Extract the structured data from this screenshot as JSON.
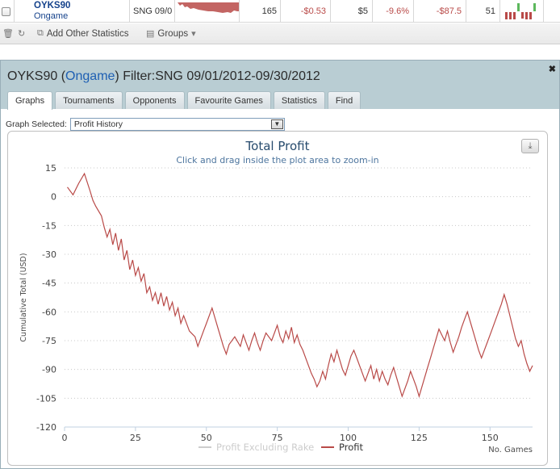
{
  "top_row": {
    "player_name": "OYKS90",
    "player_site": "Ongame",
    "game_type": "SNG 09/0",
    "games": "165",
    "profit": "-$0.53",
    "buyin": "$5",
    "roi": "-9.6%",
    "total": "-$87.5",
    "count": "51"
  },
  "toolbar": {
    "add_stats": "Add Other Statistics",
    "groups": "Groups"
  },
  "panel": {
    "title_player": "OYKS90",
    "title_site": "Ongame",
    "title_filter": "Filter:SNG 09/01/2012-09/30/2012",
    "close_glyph": "✖",
    "tabs": [
      "Graphs",
      "Tournaments",
      "Opponents",
      "Favourite Games",
      "Statistics",
      "Find"
    ],
    "graph_selected_label": "Graph Selected:",
    "graph_selected_value": "Profit History"
  },
  "chart_data": {
    "type": "line",
    "title": "Total Profit",
    "subtitle": "Click and drag inside the plot area to zoom-in",
    "xlabel": "No. Games",
    "ylabel": "Cumulative Total (USD)",
    "xlim": [
      0,
      165
    ],
    "ylim": [
      -120,
      15
    ],
    "x_ticks": [
      0,
      25,
      50,
      75,
      100,
      125,
      150
    ],
    "y_ticks": [
      15,
      0,
      -15,
      -30,
      -45,
      -60,
      -75,
      -90,
      -105,
      -120
    ],
    "legend": [
      "Profit Excluding Rake",
      "Profit"
    ],
    "legend_position": "bottom-center",
    "colors": {
      "profit": "#b94a48",
      "excl_rake": "#cccccc"
    },
    "series": [
      {
        "name": "Profit",
        "x": [
          1,
          3,
          5,
          7,
          9,
          10,
          11,
          13,
          14,
          15,
          16,
          17,
          18,
          19,
          20,
          21,
          22,
          23,
          24,
          25,
          26,
          27,
          28,
          29,
          30,
          31,
          32,
          33,
          34,
          35,
          36,
          37,
          38,
          39,
          40,
          41,
          42,
          44,
          46,
          47,
          48,
          49,
          50,
          51,
          52,
          53,
          54,
          55,
          56,
          57,
          58,
          60,
          62,
          63,
          64,
          65,
          66,
          67,
          68,
          69,
          70,
          71,
          73,
          75,
          76,
          77,
          78,
          79,
          80,
          81,
          82,
          83,
          84,
          85,
          86,
          87,
          88,
          89,
          90,
          91,
          92,
          93,
          94,
          95,
          96,
          97,
          98,
          99,
          100,
          101,
          102,
          103,
          104,
          105,
          106,
          107,
          108,
          109,
          110,
          111,
          112,
          113,
          114,
          115,
          116,
          117,
          118,
          119,
          120,
          121,
          122,
          123,
          124,
          125,
          126,
          127,
          128,
          129,
          130,
          131,
          132,
          133,
          134,
          135,
          136,
          137,
          138,
          139,
          140,
          141,
          142,
          143,
          144,
          145,
          146,
          147,
          148,
          149,
          150,
          151,
          152,
          153,
          154,
          155,
          156,
          157,
          158,
          159,
          160,
          161,
          162,
          163,
          164,
          165
        ],
        "y": [
          5,
          1,
          7,
          12,
          3,
          -2,
          -5,
          -10,
          -16,
          -21,
          -17,
          -25,
          -19,
          -28,
          -22,
          -33,
          -28,
          -38,
          -33,
          -41,
          -37,
          -44,
          -40,
          -50,
          -47,
          -54,
          -50,
          -56,
          -50,
          -57,
          -52,
          -59,
          -55,
          -62,
          -58,
          -66,
          -62,
          -70,
          -73,
          -78,
          -74,
          -70,
          -66,
          -62,
          -58,
          -63,
          -68,
          -73,
          -78,
          -82,
          -77,
          -73,
          -78,
          -72,
          -76,
          -80,
          -75,
          -71,
          -76,
          -80,
          -75,
          -71,
          -75,
          -67,
          -73,
          -76,
          -70,
          -74,
          -68,
          -76,
          -72,
          -77,
          -80,
          -84,
          -88,
          -92,
          -95,
          -99,
          -96,
          -91,
          -95,
          -88,
          -82,
          -86,
          -80,
          -85,
          -90,
          -93,
          -88,
          -83,
          -80,
          -84,
          -88,
          -92,
          -96,
          -92,
          -88,
          -95,
          -90,
          -96,
          -91,
          -95,
          -98,
          -93,
          -89,
          -94,
          -99,
          -104,
          -100,
          -96,
          -91,
          -95,
          -99,
          -104,
          -99,
          -94,
          -89,
          -84,
          -79,
          -74,
          -69,
          -72,
          -75,
          -70,
          -76,
          -81,
          -77,
          -73,
          -68,
          -64,
          -60,
          -65,
          -70,
          -75,
          -80,
          -84,
          -80,
          -76,
          -72,
          -68,
          -64,
          -60,
          -56,
          -51,
          -56,
          -62,
          -68,
          -74,
          -78,
          -75,
          -82,
          -87,
          -91,
          -88
        ]
      }
    ]
  }
}
